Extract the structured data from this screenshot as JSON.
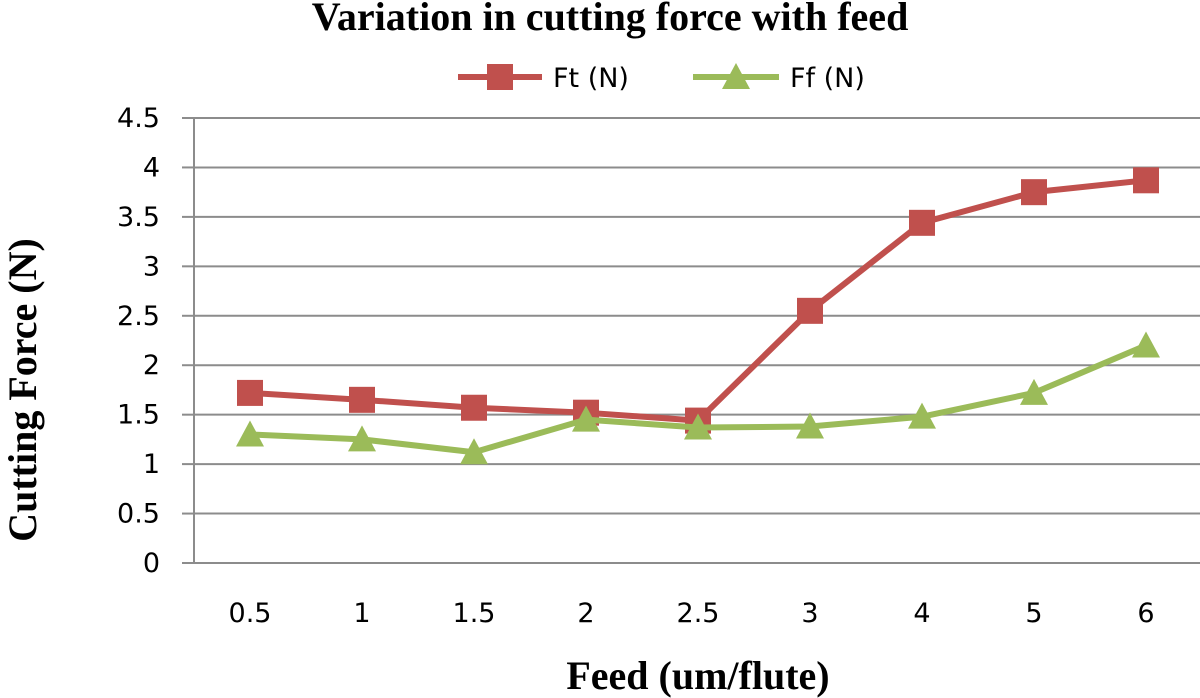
{
  "chart_data": {
    "type": "line",
    "title": "Variation in cutting force with feed",
    "xlabel": "Feed (um/flute)",
    "ylabel": "Cutting Force (N)",
    "categories": [
      "0.5",
      "1",
      "1.5",
      "2",
      "2.5",
      "3",
      "4",
      "5",
      "6"
    ],
    "ylim": [
      0,
      4.5
    ],
    "yticks": [
      "0",
      "0.5",
      "1",
      "1.5",
      "2",
      "2.5",
      "3",
      "3.5",
      "4",
      "4.5"
    ],
    "grid": true,
    "legend_position": "top",
    "series": [
      {
        "name": "Ft (N)",
        "marker": "square",
        "color": "#c0504d",
        "values": [
          1.72,
          1.65,
          1.57,
          1.52,
          1.44,
          2.55,
          3.44,
          3.75,
          3.87
        ]
      },
      {
        "name": "Ff (N)",
        "marker": "triangle",
        "color": "#9bbb59",
        "values": [
          1.3,
          1.25,
          1.12,
          1.45,
          1.37,
          1.38,
          1.48,
          1.72,
          2.2
        ]
      }
    ]
  }
}
